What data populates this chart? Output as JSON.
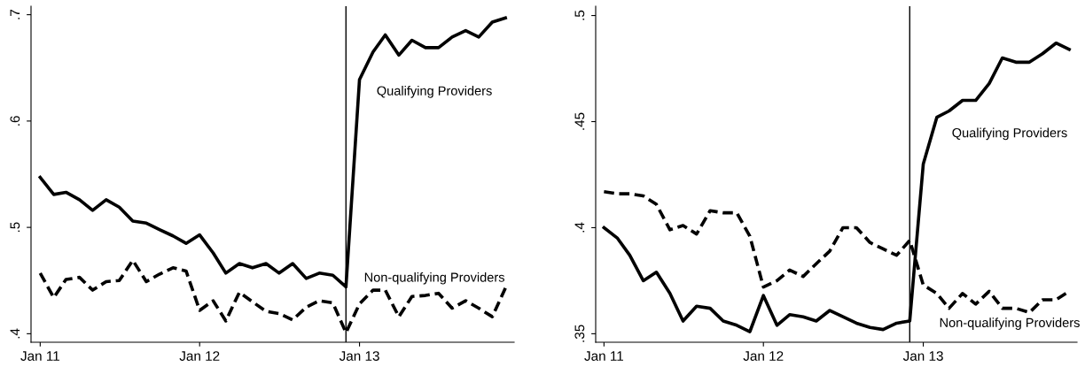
{
  "chart_data": [
    {
      "type": "line",
      "x": [
        "2011-01",
        "2011-02",
        "2011-03",
        "2011-04",
        "2011-05",
        "2011-06",
        "2011-07",
        "2011-08",
        "2011-09",
        "2011-10",
        "2011-11",
        "2011-12",
        "2012-01",
        "2012-02",
        "2012-03",
        "2012-04",
        "2012-05",
        "2012-06",
        "2012-07",
        "2012-08",
        "2012-09",
        "2012-10",
        "2012-11",
        "2012-12",
        "2013-01",
        "2013-02",
        "2013-03",
        "2013-04",
        "2013-05",
        "2013-06",
        "2013-07",
        "2013-08",
        "2013-09",
        "2013-10",
        "2013-11",
        "2013-12"
      ],
      "series": [
        {
          "name": "Qualifying Providers",
          "color": "#000000",
          "line_style": "solid",
          "values": [
            0.547,
            0.531,
            0.533,
            0.526,
            0.516,
            0.526,
            0.519,
            0.506,
            0.504,
            0.498,
            0.492,
            0.485,
            0.493,
            0.476,
            0.457,
            0.466,
            0.462,
            0.466,
            0.457,
            0.466,
            0.452,
            0.457,
            0.455,
            0.444,
            0.639,
            0.665,
            0.681,
            0.662,
            0.676,
            0.669,
            0.669,
            0.679,
            0.685,
            0.679,
            0.693,
            0.697
          ]
        },
        {
          "name": "Non-qualifying Providers",
          "color": "#000000",
          "line_style": "dashed",
          "values": [
            0.457,
            0.434,
            0.451,
            0.453,
            0.441,
            0.449,
            0.45,
            0.469,
            0.449,
            0.456,
            0.462,
            0.459,
            0.422,
            0.431,
            0.412,
            0.439,
            0.43,
            0.421,
            0.419,
            0.413,
            0.425,
            0.431,
            0.429,
            0.401,
            0.428,
            0.441,
            0.441,
            0.416,
            0.435,
            0.436,
            0.438,
            0.424,
            0.431,
            0.424,
            0.416,
            0.443
          ]
        }
      ],
      "xlim": [
        "2010-12-11",
        "2013-12-21"
      ],
      "xticks": [
        {
          "value": "2011-01",
          "label": "Jan 11"
        },
        {
          "value": "2012-01",
          "label": "Jan 12"
        },
        {
          "value": "2013-01",
          "label": "Jan 13"
        }
      ],
      "ylim": [
        0.392,
        0.708
      ],
      "yticks": [
        {
          "value": 0.4,
          "label": ".4"
        },
        {
          "value": 0.5,
          "label": ".5"
        },
        {
          "value": 0.6,
          "label": ".6"
        },
        {
          "value": 0.7,
          "label": ".7"
        }
      ],
      "ref_lines": [
        {
          "axis": "x",
          "value": "2012-12",
          "color": "#000000"
        }
      ],
      "grid": false,
      "legend": false
    },
    {
      "type": "line",
      "x": [
        "2011-01",
        "2011-02",
        "2011-03",
        "2011-04",
        "2011-05",
        "2011-06",
        "2011-07",
        "2011-08",
        "2011-09",
        "2011-10",
        "2011-11",
        "2011-12",
        "2012-01",
        "2012-02",
        "2012-03",
        "2012-04",
        "2012-05",
        "2012-06",
        "2012-07",
        "2012-08",
        "2012-09",
        "2012-10",
        "2012-11",
        "2012-12",
        "2013-01",
        "2013-02",
        "2013-03",
        "2013-04",
        "2013-05",
        "2013-06",
        "2013-07",
        "2013-08",
        "2013-09",
        "2013-10",
        "2013-11",
        "2013-12"
      ],
      "series": [
        {
          "name": "Qualifying Providers",
          "color": "#000000",
          "line_style": "solid",
          "values": [
            0.4,
            0.395,
            0.387,
            0.375,
            0.379,
            0.369,
            0.356,
            0.363,
            0.362,
            0.356,
            0.354,
            0.351,
            0.368,
            0.354,
            0.359,
            0.358,
            0.356,
            0.361,
            0.358,
            0.355,
            0.353,
            0.352,
            0.355,
            0.356,
            0.43,
            0.452,
            0.455,
            0.46,
            0.46,
            0.468,
            0.48,
            0.478,
            0.478,
            0.482,
            0.487,
            0.484
          ]
        },
        {
          "name": "Non-qualifying Providers",
          "color": "#000000",
          "line_style": "dashed",
          "values": [
            0.417,
            0.416,
            0.416,
            0.415,
            0.411,
            0.399,
            0.401,
            0.397,
            0.408,
            0.407,
            0.407,
            0.396,
            0.372,
            0.375,
            0.38,
            0.377,
            0.383,
            0.389,
            0.4,
            0.4,
            0.393,
            0.39,
            0.387,
            0.394,
            0.373,
            0.369,
            0.362,
            0.369,
            0.364,
            0.37,
            0.362,
            0.362,
            0.36,
            0.366,
            0.366,
            0.37
          ]
        }
      ],
      "xlim": [
        "2010-12-13",
        "2013-12-19"
      ],
      "xticks": [
        {
          "value": "2011-01",
          "label": "Jan 11"
        },
        {
          "value": "2012-01",
          "label": "Jan 12"
        },
        {
          "value": "2013-01",
          "label": "Jan 13"
        }
      ],
      "ylim": [
        0.346,
        0.5044
      ],
      "yticks": [
        {
          "value": 0.35,
          "label": ".35"
        },
        {
          "value": 0.4,
          "label": ".4"
        },
        {
          "value": 0.45,
          "label": ".45"
        },
        {
          "value": 0.5,
          "label": ".5"
        }
      ],
      "ref_lines": [
        {
          "axis": "x",
          "value": "2012-12",
          "color": "#000000"
        }
      ],
      "grid": false,
      "legend": false
    }
  ]
}
